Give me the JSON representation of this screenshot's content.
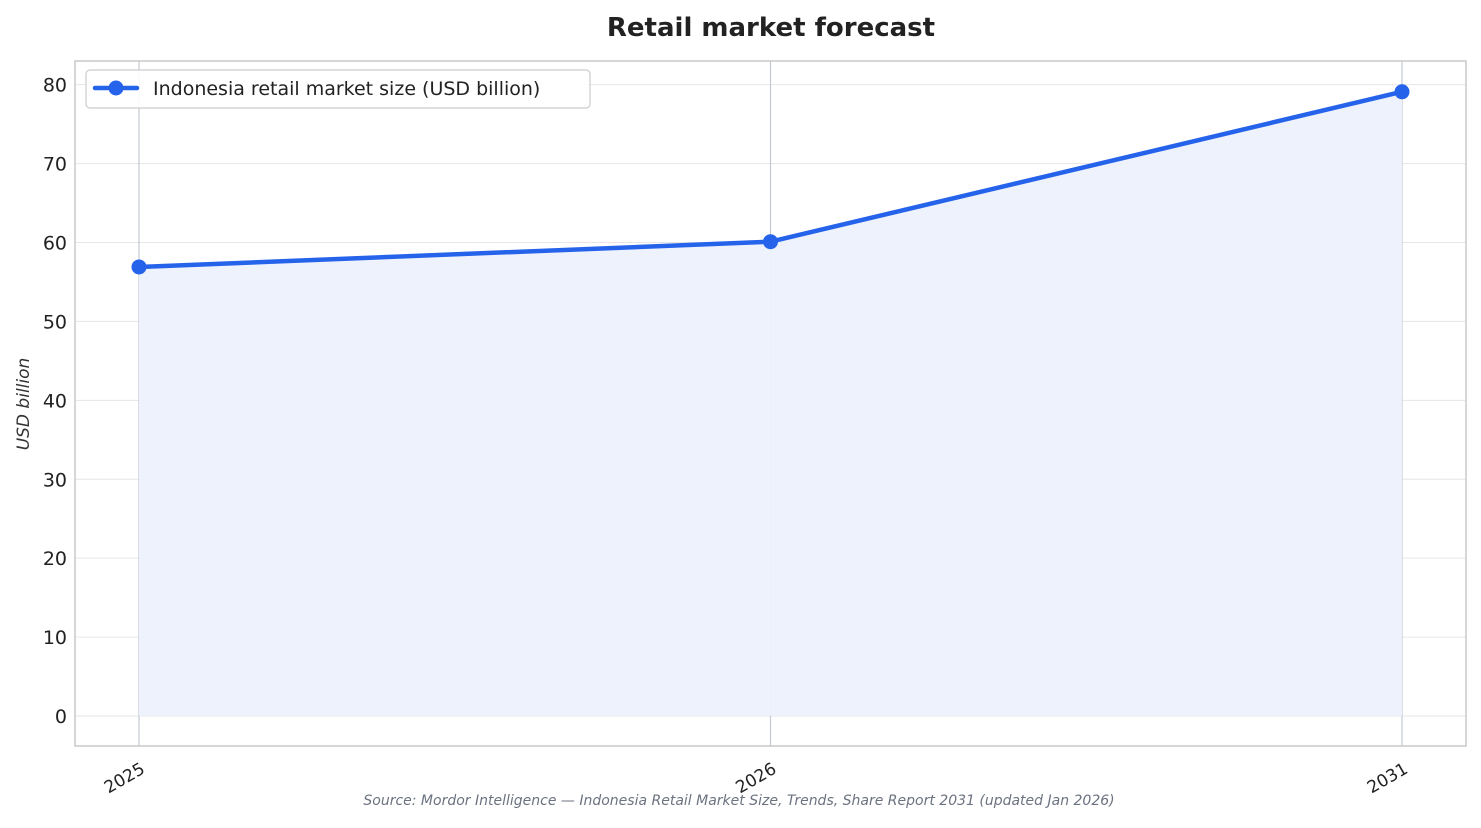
{
  "chart_data": {
    "type": "line",
    "title": "Retail market forecast",
    "xlabel": "",
    "ylabel": "USD billion",
    "categories": [
      "2025",
      "2026",
      "2031"
    ],
    "series": [
      {
        "name": "Indonesia retail market size (USD billion)",
        "values": [
          56.9,
          60.1,
          79.1
        ]
      }
    ],
    "ylim": [
      -3.8,
      83
    ],
    "yticks": [
      0,
      10,
      20,
      30,
      40,
      50,
      60,
      70,
      80
    ],
    "grid": true,
    "legend_position": "top-left",
    "area_fill": true,
    "source": "Source: Mordor Intelligence — Indonesia Retail Market Size, Trends, Share Report 2031 (updated Jan 2026)",
    "colors": {
      "line": "#2563eb",
      "fill": "#ecf1fc",
      "grid": "#e6e6e6",
      "vline": "#c3c8d2",
      "axes": "#c8c8c8",
      "text": "#222222",
      "source": "#6b7280"
    }
  }
}
